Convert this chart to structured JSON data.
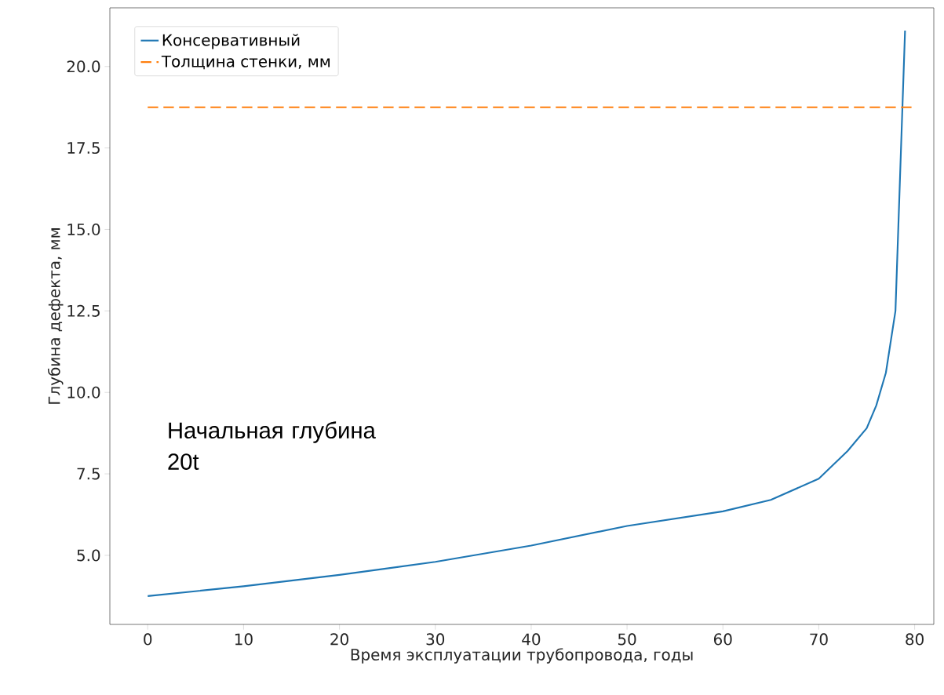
{
  "chart_data": {
    "type": "line",
    "xlabel": "Время эксплуатации трубопровода, годы",
    "ylabel": "Глубина дефекта, мм",
    "xlim": [
      -3.95,
      82
    ],
    "ylim": [
      2.88,
      21.8
    ],
    "xticks": [
      0,
      10,
      20,
      30,
      40,
      50,
      60,
      70,
      80
    ],
    "yticks": [
      {
        "value": 5,
        "label": "5.0"
      },
      {
        "value": 7.5,
        "label": "7.5"
      },
      {
        "value": 10,
        "label": "10.0"
      },
      {
        "value": 12.5,
        "label": "12.5"
      },
      {
        "value": 15,
        "label": "15.0"
      },
      {
        "value": 17.5,
        "label": "17.5"
      },
      {
        "value": 20,
        "label": "20.0"
      }
    ],
    "legend": "top left",
    "annotations": [
      "Начальная глубина 20t"
    ],
    "series": [
      {
        "name": "Консервативный",
        "color": "#1f77b4",
        "line_style": "solid",
        "x": [
          0,
          10,
          20,
          30,
          40,
          50,
          60,
          65,
          70,
          73,
          75,
          76,
          77,
          78,
          79
        ],
        "values": [
          3.75,
          4.05,
          4.4,
          4.8,
          5.3,
          5.9,
          6.35,
          6.7,
          7.35,
          8.2,
          8.9,
          9.6,
          10.6,
          12.5,
          21.1
        ]
      },
      {
        "name": "Толщина стенки, мм",
        "color": "#ff7f0e",
        "line_style": "dashed",
        "x": [
          0,
          80
        ],
        "values": [
          18.75,
          18.75
        ]
      }
    ]
  }
}
